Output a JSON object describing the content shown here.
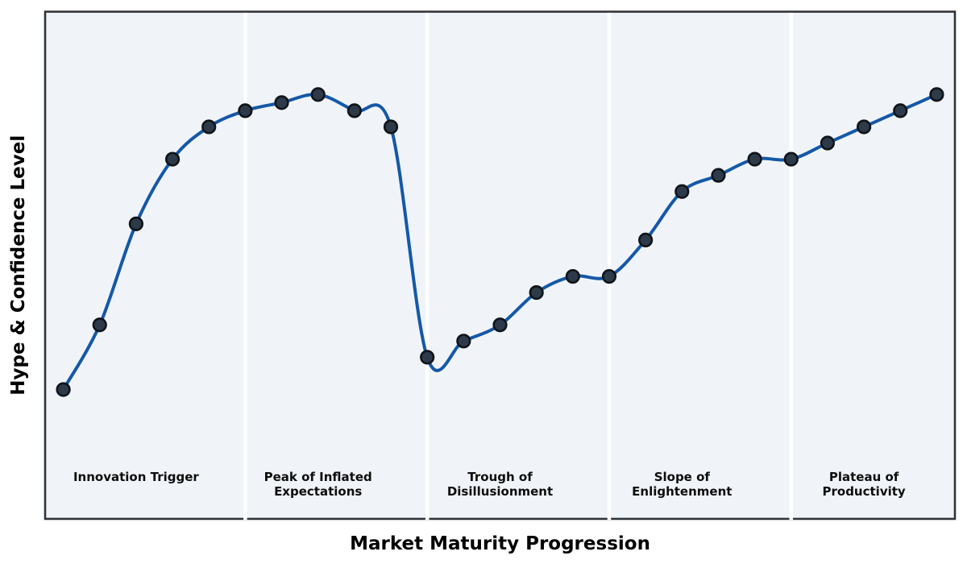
{
  "chart_data": {
    "type": "line",
    "title": "",
    "xlabel": "Market Maturity Progression",
    "ylabel": "Hype & Confidence Level",
    "x": [
      0,
      1,
      2,
      3,
      4,
      5,
      6,
      7,
      8,
      9,
      10,
      11,
      12,
      13,
      14,
      15,
      16,
      17,
      18,
      19,
      20,
      21,
      22,
      23,
      24
    ],
    "series": [
      {
        "name": "Hype & Confidence Level",
        "values": [
          15,
          31,
          56,
          72,
          80,
          84,
          86,
          88,
          84,
          80,
          23,
          27,
          31,
          39,
          43,
          43,
          52,
          64,
          68,
          72,
          72,
          76,
          80,
          84,
          88
        ]
      }
    ],
    "xlim": [
      -0.5,
      24.5
    ],
    "ylim": [
      -17,
      108.5
    ],
    "grid": false,
    "legend": "none",
    "tick_labels": "none",
    "curve_style": "smooth-spline",
    "marker_style": "filled-circle",
    "phase_boundaries_x": [
      5,
      10,
      15,
      20
    ],
    "phases": [
      {
        "label": "Innovation Trigger",
        "lines": [
          "Innovation Trigger"
        ],
        "center_x": 2
      },
      {
        "label": "Peak of Inflated Expectations",
        "lines": [
          "Peak of Inflated",
          "Expectations"
        ],
        "center_x": 7
      },
      {
        "label": "Trough of Disillusionment",
        "lines": [
          "Trough of",
          "Disillusionment"
        ],
        "center_x": 12
      },
      {
        "label": "Slope of Enlightenment",
        "lines": [
          "Slope of",
          "Enlightenment"
        ],
        "center_x": 17
      },
      {
        "label": "Plateau of Productivity",
        "lines": [
          "Plateau of",
          "Productivity"
        ],
        "center_x": 22
      }
    ],
    "colors": {
      "figure_background": "#ffffff",
      "plot_background": "#f0f4f8",
      "phase_separator": "#ffffff",
      "frame": "#2f3337",
      "line": "#1558a8",
      "marker_fill": "#2d3a49",
      "marker_edge": "#0f1419",
      "label_text": "#000000"
    }
  }
}
